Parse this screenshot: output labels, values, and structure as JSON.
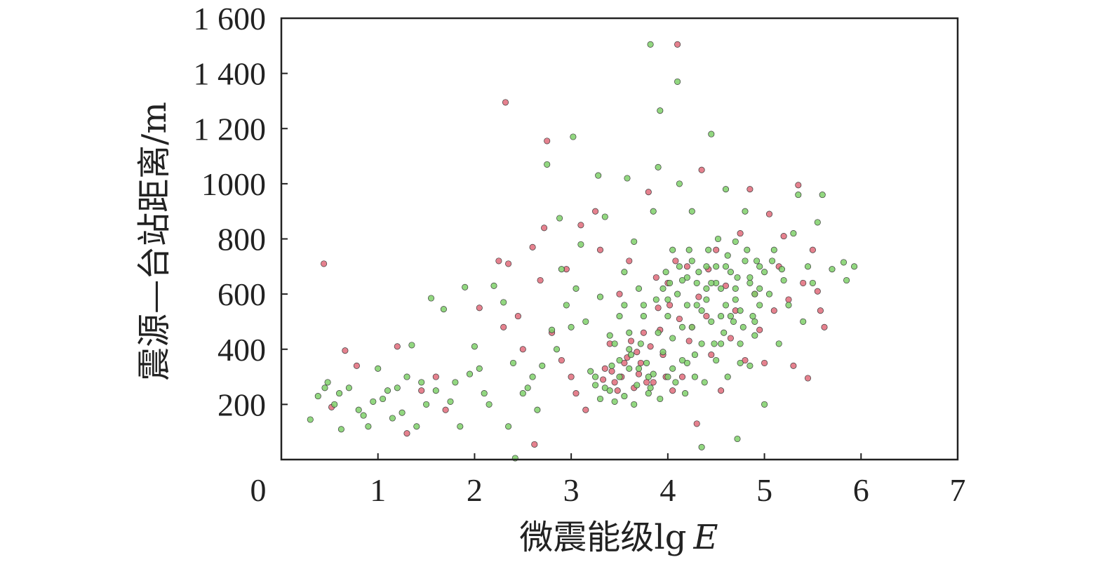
{
  "chart_data": {
    "type": "scatter",
    "xlabel": "微震能级lg",
    "xlabel_var": "E",
    "ylabel": "震源—台站距离/m",
    "xlim": [
      0,
      7
    ],
    "ylim": [
      0,
      1600
    ],
    "x_ticks": [
      0,
      1,
      2,
      3,
      4,
      5,
      6,
      7
    ],
    "x_tick_labels": [
      "0",
      "1",
      "2",
      "3",
      "4",
      "5",
      "6",
      "7"
    ],
    "y_ticks": [
      200,
      400,
      600,
      800,
      1000,
      1200,
      1400,
      1600
    ],
    "y_tick_labels": [
      "200",
      "400",
      "600",
      "800",
      "1000",
      "1 200",
      "1 400",
      "1 600"
    ],
    "series": [
      {
        "color": "#e06b7a",
        "points": [
          [
            0.44,
            710
          ],
          [
            0.66,
            395
          ],
          [
            0.52,
            190
          ],
          [
            0.78,
            340
          ],
          [
            1.2,
            410
          ],
          [
            1.3,
            95
          ],
          [
            1.45,
            250
          ],
          [
            1.6,
            300
          ],
          [
            1.7,
            180
          ],
          [
            2.05,
            550
          ],
          [
            2.25,
            720
          ],
          [
            2.3,
            480
          ],
          [
            2.32,
            1295
          ],
          [
            2.35,
            710
          ],
          [
            2.45,
            520
          ],
          [
            2.5,
            400
          ],
          [
            2.6,
            770
          ],
          [
            2.62,
            55
          ],
          [
            2.68,
            650
          ],
          [
            2.72,
            840
          ],
          [
            2.75,
            1155
          ],
          [
            2.8,
            460
          ],
          [
            2.9,
            360
          ],
          [
            2.95,
            690
          ],
          [
            3.0,
            300
          ],
          [
            3.05,
            240
          ],
          [
            3.1,
            850
          ],
          [
            3.15,
            180
          ],
          [
            3.25,
            900
          ],
          [
            3.3,
            760
          ],
          [
            3.35,
            330
          ],
          [
            3.4,
            420
          ],
          [
            3.45,
            280
          ],
          [
            3.5,
            600
          ],
          [
            3.55,
            350
          ],
          [
            3.6,
            720
          ],
          [
            3.65,
            260
          ],
          [
            3.7,
            310
          ],
          [
            3.75,
            460
          ],
          [
            3.8,
            970
          ],
          [
            3.85,
            280
          ],
          [
            3.9,
            550
          ],
          [
            3.95,
            380
          ],
          [
            4.0,
            640
          ],
          [
            4.05,
            250
          ],
          [
            4.1,
            1505
          ],
          [
            4.15,
            300
          ],
          [
            4.2,
            700
          ],
          [
            4.25,
            480
          ],
          [
            4.3,
            130
          ],
          [
            4.35,
            1050
          ],
          [
            4.4,
            520
          ],
          [
            4.45,
            380
          ],
          [
            4.5,
            760
          ],
          [
            4.55,
            250
          ],
          [
            4.6,
            630
          ],
          [
            4.65,
            440
          ],
          [
            4.7,
            540
          ],
          [
            4.75,
            820
          ],
          [
            4.8,
            360
          ],
          [
            4.85,
            980
          ],
          [
            4.9,
            600
          ],
          [
            4.95,
            470
          ],
          [
            5.0,
            350
          ],
          [
            5.05,
            890
          ],
          [
            5.1,
            540
          ],
          [
            5.15,
            700
          ],
          [
            5.2,
            810
          ],
          [
            5.25,
            580
          ],
          [
            5.3,
            340
          ],
          [
            5.35,
            995
          ],
          [
            5.4,
            640
          ],
          [
            5.45,
            295
          ],
          [
            5.5,
            760
          ],
          [
            5.55,
            610
          ],
          [
            5.58,
            540
          ],
          [
            5.62,
            480
          ],
          [
            3.42,
            320
          ],
          [
            3.52,
            300
          ],
          [
            3.62,
            430
          ],
          [
            3.72,
            350
          ],
          [
            3.82,
            410
          ],
          [
            3.92,
            470
          ],
          [
            4.02,
            560
          ],
          [
            3.33,
            290
          ],
          [
            3.58,
            370
          ],
          [
            3.78,
            280
          ],
          [
            3.88,
            660
          ],
          [
            4.12,
            510
          ],
          [
            4.22,
            430
          ],
          [
            4.32,
            590
          ],
          [
            4.42,
            690
          ],
          [
            3.48,
            250
          ],
          [
            3.68,
            390
          ],
          [
            3.98,
            300
          ],
          [
            4.08,
            720
          ]
        ]
      },
      {
        "color": "#7fd06a",
        "points": [
          [
            0.3,
            145
          ],
          [
            0.38,
            230
          ],
          [
            0.45,
            260
          ],
          [
            0.48,
            280
          ],
          [
            0.55,
            200
          ],
          [
            0.6,
            240
          ],
          [
            0.62,
            110
          ],
          [
            0.7,
            260
          ],
          [
            0.8,
            180
          ],
          [
            0.85,
            160
          ],
          [
            0.9,
            120
          ],
          [
            0.95,
            210
          ],
          [
            1.0,
            330
          ],
          [
            1.05,
            220
          ],
          [
            1.1,
            250
          ],
          [
            1.15,
            150
          ],
          [
            1.2,
            260
          ],
          [
            1.25,
            170
          ],
          [
            1.3,
            300
          ],
          [
            1.35,
            415
          ],
          [
            1.4,
            120
          ],
          [
            1.45,
            280
          ],
          [
            1.5,
            200
          ],
          [
            1.55,
            585
          ],
          [
            1.6,
            250
          ],
          [
            1.68,
            545
          ],
          [
            1.75,
            210
          ],
          [
            1.8,
            280
          ],
          [
            1.85,
            120
          ],
          [
            1.9,
            625
          ],
          [
            1.95,
            310
          ],
          [
            2.0,
            410
          ],
          [
            2.05,
            330
          ],
          [
            2.1,
            240
          ],
          [
            2.15,
            200
          ],
          [
            2.2,
            630
          ],
          [
            2.3,
            570
          ],
          [
            2.35,
            120
          ],
          [
            2.4,
            350
          ],
          [
            2.42,
            5
          ],
          [
            2.5,
            240
          ],
          [
            2.55,
            260
          ],
          [
            2.6,
            300
          ],
          [
            2.65,
            180
          ],
          [
            2.7,
            340
          ],
          [
            2.75,
            1070
          ],
          [
            2.8,
            470
          ],
          [
            2.85,
            400
          ],
          [
            2.88,
            875
          ],
          [
            2.9,
            690
          ],
          [
            2.95,
            560
          ],
          [
            3.0,
            480
          ],
          [
            3.02,
            1170
          ],
          [
            3.05,
            620
          ],
          [
            3.1,
            780
          ],
          [
            3.15,
            500
          ],
          [
            3.2,
            320
          ],
          [
            3.25,
            270
          ],
          [
            3.28,
            1030
          ],
          [
            3.3,
            590
          ],
          [
            3.35,
            880
          ],
          [
            3.4,
            450
          ],
          [
            3.45,
            210
          ],
          [
            3.5,
            520
          ],
          [
            3.55,
            680
          ],
          [
            3.58,
            1020
          ],
          [
            3.6,
            400
          ],
          [
            3.65,
            790
          ],
          [
            3.7,
            330
          ],
          [
            3.75,
            560
          ],
          [
            3.8,
            240
          ],
          [
            3.82,
            1505
          ],
          [
            3.85,
            900
          ],
          [
            3.9,
            1060
          ],
          [
            3.92,
            1265
          ],
          [
            3.95,
            620
          ],
          [
            4.0,
            300
          ],
          [
            4.05,
            760
          ],
          [
            4.1,
            1370
          ],
          [
            4.12,
            1000
          ],
          [
            4.15,
            480
          ],
          [
            4.2,
            350
          ],
          [
            4.25,
            900
          ],
          [
            4.3,
            560
          ],
          [
            4.35,
            45
          ],
          [
            4.4,
            700
          ],
          [
            4.45,
            1180
          ],
          [
            4.5,
            640
          ],
          [
            4.55,
            420
          ],
          [
            4.6,
            980
          ],
          [
            4.65,
            520
          ],
          [
            4.7,
            790
          ],
          [
            4.72,
            75
          ],
          [
            4.75,
            350
          ],
          [
            4.8,
            900
          ],
          [
            4.85,
            640
          ],
          [
            4.9,
            450
          ],
          [
            4.95,
            700
          ],
          [
            5.0,
            200
          ],
          [
            5.05,
            600
          ],
          [
            5.1,
            760
          ],
          [
            5.15,
            420
          ],
          [
            5.2,
            650
          ],
          [
            5.25,
            560
          ],
          [
            5.3,
            820
          ],
          [
            5.35,
            960
          ],
          [
            5.4,
            500
          ],
          [
            5.45,
            700
          ],
          [
            5.5,
            640
          ],
          [
            5.55,
            860
          ],
          [
            5.6,
            960
          ],
          [
            5.7,
            690
          ],
          [
            5.82,
            715
          ],
          [
            5.85,
            650
          ],
          [
            5.93,
            700
          ],
          [
            3.35,
            260
          ],
          [
            3.42,
            340
          ],
          [
            3.5,
            300
          ],
          [
            3.55,
            230
          ],
          [
            3.62,
            380
          ],
          [
            3.68,
            270
          ],
          [
            3.72,
            420
          ],
          [
            3.78,
            350
          ],
          [
            3.85,
            310
          ],
          [
            3.9,
            460
          ],
          [
            3.95,
            390
          ],
          [
            4.0,
            520
          ],
          [
            4.05,
            440
          ],
          [
            4.1,
            600
          ],
          [
            4.15,
            360
          ],
          [
            4.2,
            560
          ],
          [
            4.25,
            480
          ],
          [
            4.3,
            640
          ],
          [
            4.35,
            420
          ],
          [
            4.4,
            580
          ],
          [
            4.45,
            500
          ],
          [
            4.5,
            700
          ],
          [
            4.55,
            620
          ],
          [
            4.6,
            560
          ],
          [
            4.65,
            680
          ],
          [
            4.7,
            620
          ],
          [
            4.75,
            540
          ],
          [
            4.8,
            720
          ],
          [
            4.85,
            660
          ],
          [
            4.9,
            600
          ],
          [
            4.95,
            560
          ],
          [
            5.0,
            680
          ],
          [
            3.45,
            420
          ],
          [
            3.6,
            460
          ],
          [
            3.75,
            520
          ],
          [
            3.88,
            580
          ],
          [
            4.02,
            640
          ],
          [
            4.12,
            700
          ],
          [
            4.22,
            760
          ],
          [
            4.32,
            680
          ],
          [
            4.42,
            760
          ],
          [
            4.52,
            800
          ],
          [
            4.62,
            740
          ],
          [
            4.72,
            660
          ],
          [
            4.82,
            760
          ],
          [
            4.92,
            720
          ],
          [
            3.5,
            360
          ],
          [
            3.8,
            300
          ],
          [
            4.05,
            330
          ],
          [
            4.28,
            380
          ],
          [
            4.48,
            420
          ],
          [
            4.58,
            460
          ],
          [
            4.68,
            500
          ],
          [
            4.78,
            480
          ],
          [
            4.88,
            520
          ],
          [
            3.3,
            220
          ],
          [
            3.65,
            200
          ],
          [
            3.92,
            220
          ],
          [
            4.18,
            240
          ],
          [
            4.38,
            280
          ],
          [
            4.62,
            300
          ],
          [
            4.85,
            340
          ],
          [
            3.55,
            560
          ],
          [
            3.7,
            620
          ],
          [
            3.98,
            680
          ],
          [
            4.25,
            720
          ],
          [
            4.45,
            640
          ],
          [
            4.7,
            580
          ],
          [
            4.9,
            500
          ],
          [
            5.08,
            720
          ],
          [
            5.18,
            690
          ],
          [
            4.15,
            650
          ],
          [
            4.35,
            540
          ],
          [
            4.55,
            520
          ],
          [
            3.25,
            300
          ],
          [
            3.4,
            250
          ],
          [
            3.6,
            330
          ],
          [
            3.82,
            260
          ],
          [
            4.08,
            280
          ],
          [
            4.28,
            300
          ],
          [
            4.5,
            360
          ],
          [
            4.75,
            420
          ],
          [
            4.95,
            620
          ],
          [
            4.6,
            700
          ],
          [
            4.4,
            620
          ],
          [
            4.2,
            660
          ],
          [
            4.0,
            580
          ]
        ]
      }
    ]
  }
}
